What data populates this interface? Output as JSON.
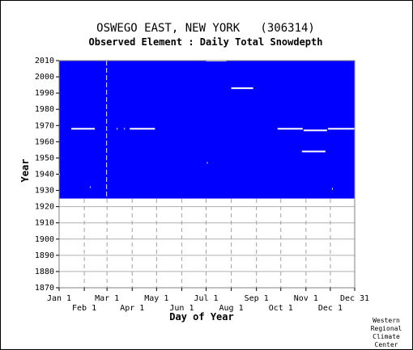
{
  "chart_data": {
    "type": "heatmap",
    "title": "OSWEGO EAST, NEW YORK   (306314)",
    "subtitle": "Observed Element : Daily Total Snowdepth",
    "xlabel": "Day of Year",
    "ylabel": "Year",
    "xlim": [
      1,
      365
    ],
    "ylim": [
      1870,
      2010
    ],
    "grid": true,
    "x_ticks_top_row": [
      {
        "label": "Jan 1",
        "day": 1
      },
      {
        "label": "Mar 1",
        "day": 60
      },
      {
        "label": "May 1",
        "day": 121
      },
      {
        "label": "Jul 1",
        "day": 182
      },
      {
        "label": "Sep 1",
        "day": 244
      },
      {
        "label": "Nov 1",
        "day": 305
      },
      {
        "label": "Dec 31",
        "day": 365
      }
    ],
    "x_ticks_bottom_row": [
      {
        "label": "Feb 1",
        "day": 32
      },
      {
        "label": "Apr 1",
        "day": 91
      },
      {
        "label": "Jun 1",
        "day": 152
      },
      {
        "label": "Aug 1",
        "day": 213
      },
      {
        "label": "Oct 1",
        "day": 274
      },
      {
        "label": "Dec 1",
        "day": 335
      }
    ],
    "y_ticks": [
      1870,
      1880,
      1890,
      1900,
      1910,
      1920,
      1930,
      1940,
      1950,
      1960,
      1970,
      1980,
      1990,
      2000,
      2010
    ],
    "data_coverage": {
      "color": "#0000ff",
      "start_year": 1925,
      "end_year": 2010,
      "day_start": 1,
      "day_end": 365
    },
    "missing_segments": [
      {
        "year": 2010,
        "day_start": 182,
        "day_end": 207
      },
      {
        "year": 1993,
        "day_start": 213,
        "day_end": 240
      },
      {
        "year": 1968,
        "day_start": 16,
        "day_end": 45
      },
      {
        "year": 1968,
        "day_start": 72,
        "day_end": 73
      },
      {
        "year": 1968,
        "day_start": 81,
        "day_end": 82
      },
      {
        "year": 1968,
        "day_start": 88,
        "day_end": 119
      },
      {
        "year": 1968,
        "day_start": 270,
        "day_end": 301
      },
      {
        "year": 1967,
        "day_start": 302,
        "day_end": 331
      },
      {
        "year": 1968,
        "day_start": 332,
        "day_end": 365
      },
      {
        "year": 1954,
        "day_start": 300,
        "day_end": 329
      },
      {
        "year": 1947,
        "day_start": 183,
        "day_end": 184
      },
      {
        "year": 1932,
        "day_start": 39,
        "day_end": 40
      },
      {
        "year": 1931,
        "day_start": 337,
        "day_end": 338
      },
      {
        "year": 1940,
        "day_start": 1,
        "day_end": 2
      }
    ],
    "missing_day_column": {
      "day": 59,
      "start_year": 1925,
      "end_year": 2010
    }
  },
  "credit": [
    "Western",
    "Regional",
    "Climate",
    "Center"
  ]
}
